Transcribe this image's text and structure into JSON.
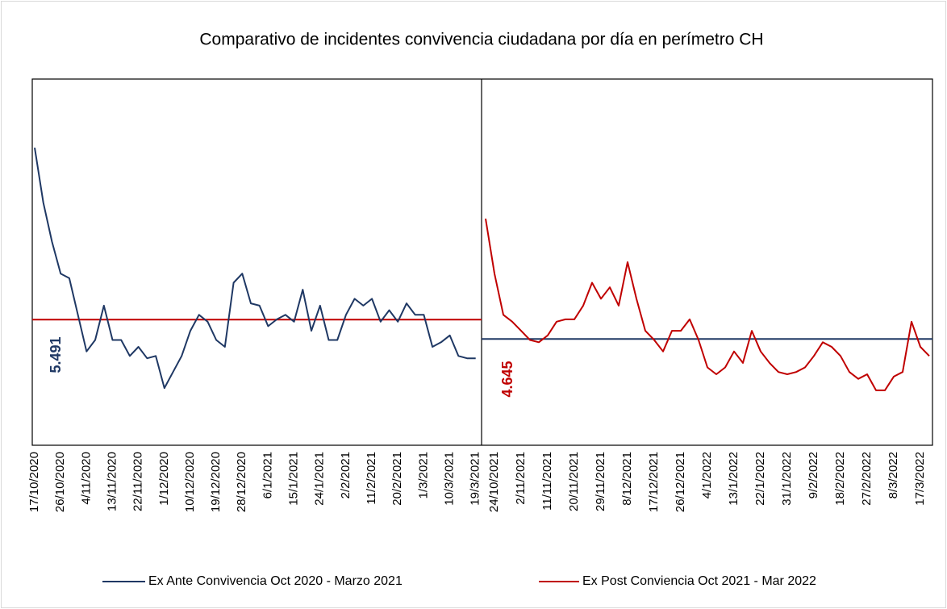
{
  "title": "Comparativo de incidentes convivencia ciudadana por día en perímetro CH",
  "chart_data": [
    {
      "type": "line",
      "ylim": [
        0,
        16
      ],
      "mean": 5.491,
      "mean_color": "#c00000",
      "categories": [
        "17/10/2020",
        null,
        null,
        "26/10/2020",
        null,
        null,
        "4/11/2020",
        null,
        null,
        "13/11/2020",
        null,
        null,
        "22/11/2020",
        null,
        null,
        "1/12/2020",
        null,
        null,
        "10/12/2020",
        null,
        null,
        "19/12/2020",
        null,
        null,
        "28/12/2020",
        null,
        null,
        "6/1/2021",
        null,
        null,
        "15/1/2021",
        null,
        null,
        "24/1/2021",
        null,
        null,
        "2/2/2021",
        null,
        null,
        "11/2/2021",
        null,
        null,
        "20/2/2021",
        null,
        null,
        "1/3/2021",
        null,
        null,
        "10/3/2021",
        null,
        null,
        "19/3/2021"
      ],
      "series": [
        {
          "name": "Ex Ante Convivencia Oct 2020 - Marzo 2021",
          "color": "#1f3864",
          "values": [
            13.0,
            10.6,
            8.9,
            7.5,
            7.3,
            5.7,
            4.1,
            4.6,
            6.1,
            4.6,
            4.6,
            3.9,
            4.3,
            3.8,
            3.9,
            2.5,
            3.2,
            3.9,
            5.0,
            5.7,
            5.4,
            4.6,
            4.3,
            7.1,
            7.5,
            6.2,
            6.1,
            5.2,
            5.5,
            5.7,
            5.4,
            6.8,
            5.0,
            6.1,
            4.6,
            4.6,
            5.7,
            6.4,
            6.1,
            6.4,
            5.4,
            5.9,
            5.4,
            6.2,
            5.7,
            5.7,
            4.3,
            4.5,
            4.8,
            3.9,
            3.8,
            3.8
          ]
        }
      ]
    },
    {
      "type": "line",
      "ylim": [
        0,
        16
      ],
      "mean": 4.645,
      "mean_color": "#1f3864",
      "categories": [
        null,
        "24/10/2021",
        null,
        null,
        "2/11/2021",
        null,
        null,
        "11/11/2021",
        null,
        null,
        "20/11/2021",
        null,
        null,
        "29/11/2021",
        null,
        null,
        "8/12/2021",
        null,
        null,
        "17/12/2021",
        null,
        null,
        "26/12/2021",
        null,
        null,
        "4/1/2022",
        null,
        null,
        "13/1/2022",
        null,
        null,
        "22/1/2022",
        null,
        null,
        "31/1/2022",
        null,
        null,
        "9/2/2022",
        null,
        null,
        "18/2/2022",
        null,
        null,
        "27/2/2022",
        null,
        null,
        "8/3/2022",
        null,
        null,
        "17/3/2022",
        null
      ],
      "series": [
        {
          "name": "Ex Post Conviencia Oct 2021 - Mar 2022",
          "color": "#c00000",
          "values": [
            9.9,
            7.5,
            5.7,
            5.4,
            5.0,
            4.6,
            4.5,
            4.8,
            5.4,
            5.5,
            5.5,
            6.1,
            7.1,
            6.4,
            6.9,
            6.1,
            8.0,
            6.4,
            5.0,
            4.6,
            4.1,
            5.0,
            5.0,
            5.5,
            4.6,
            3.4,
            3.1,
            3.4,
            4.1,
            3.6,
            5.0,
            4.1,
            3.6,
            3.2,
            3.1,
            3.2,
            3.4,
            3.9,
            4.5,
            4.3,
            3.9,
            3.2,
            2.9,
            3.1,
            2.4,
            2.4,
            3.0,
            3.2,
            5.4,
            4.3,
            3.9
          ]
        }
      ]
    }
  ]
}
